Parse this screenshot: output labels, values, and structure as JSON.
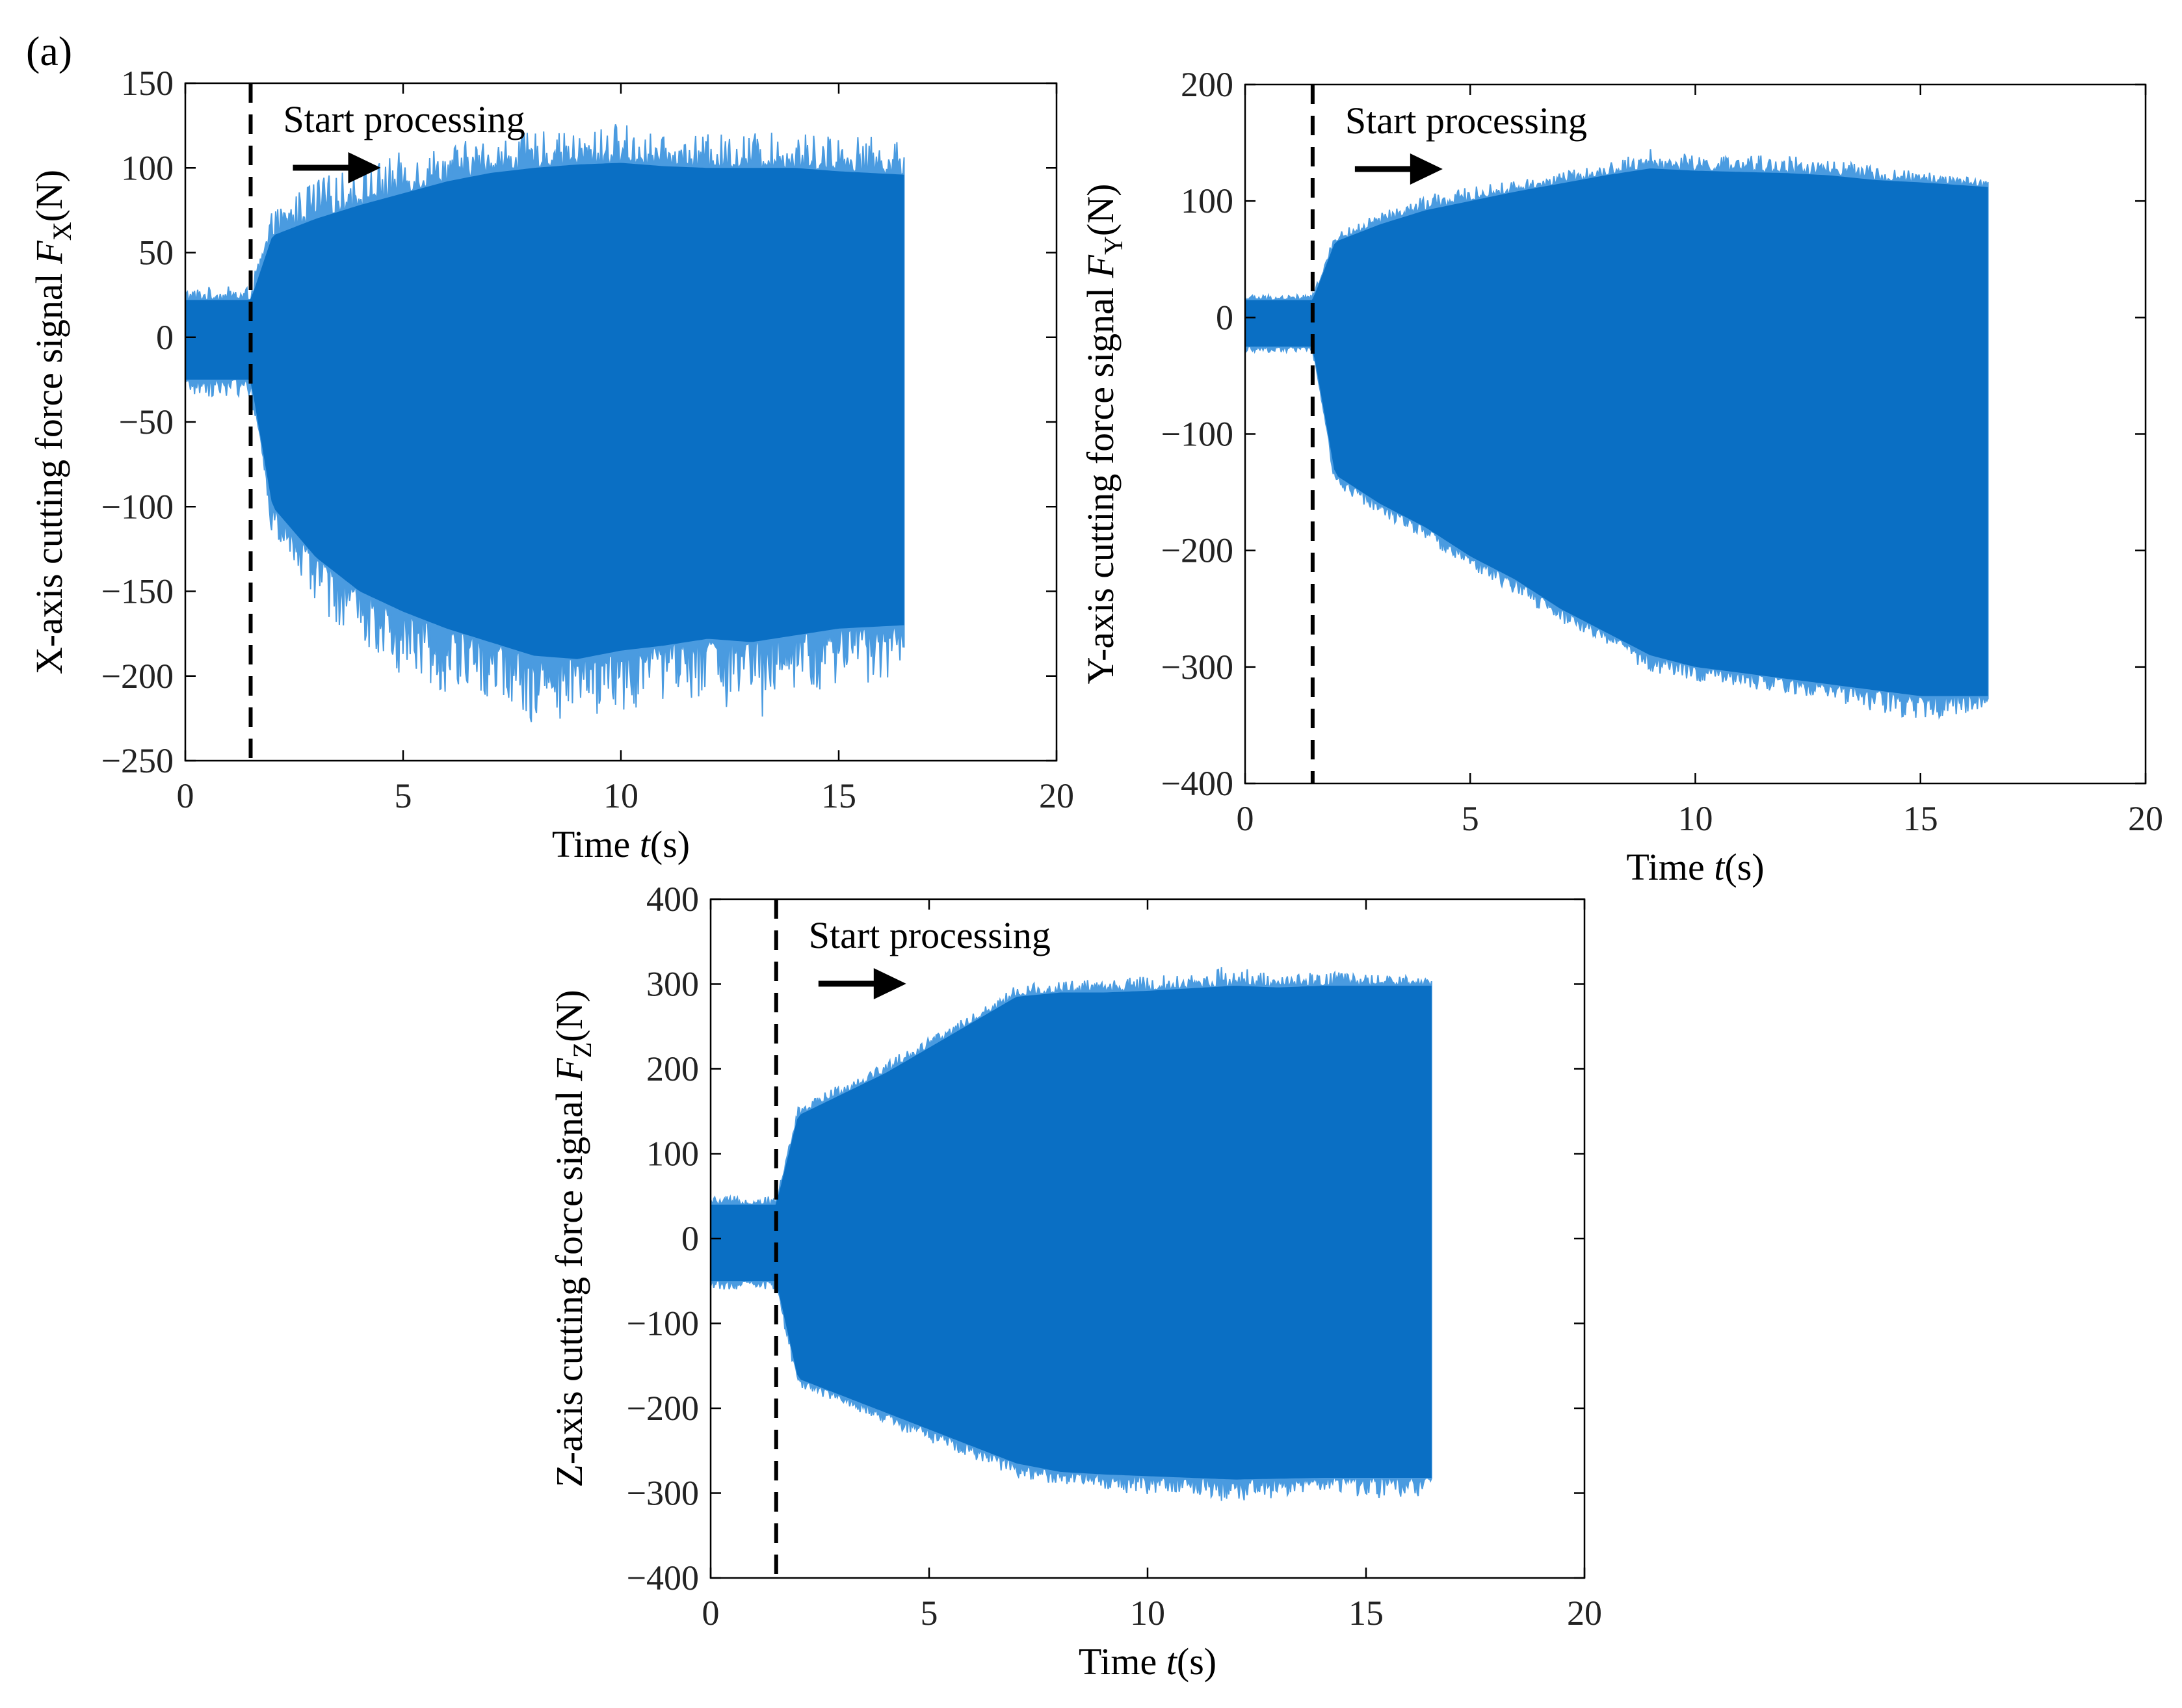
{
  "figure": {
    "panel_label": "(a)",
    "colors": {
      "signal": "#0a6fc4",
      "signal_light": "#4a9be0",
      "axis": "#000000",
      "grid_tick": "#000000"
    }
  },
  "chart_data": [
    {
      "type": "line",
      "id": "fx",
      "title": "",
      "ylabel_parts": [
        "X-axis cutting force signal ",
        "F",
        "X",
        "(N)"
      ],
      "xlabel_parts": [
        "Time ",
        "t",
        "(s)"
      ],
      "xlim": [
        0,
        20
      ],
      "ylim": [
        -250,
        150
      ],
      "xticks": [
        0,
        5,
        10,
        15,
        20
      ],
      "yticks": [
        150,
        100,
        50,
        0,
        -50,
        -100,
        -150,
        -200,
        -250
      ],
      "annotation": "Start processing",
      "start_time": 1.5,
      "end_time": 16.5,
      "envelope": {
        "t": [
          0,
          1.5,
          2.0,
          3,
          4,
          5,
          6,
          7,
          8,
          9,
          10,
          11,
          12,
          13,
          14,
          15,
          16.5
        ],
        "upper": [
          22,
          22,
          60,
          70,
          78,
          85,
          92,
          97,
          100,
          102,
          103,
          101,
          100,
          100,
          100,
          98,
          96
        ],
        "lower": [
          -25,
          -25,
          -100,
          -130,
          -150,
          -162,
          -172,
          -180,
          -188,
          -190,
          -185,
          -182,
          -178,
          -180,
          -176,
          -172,
          -170
        ],
        "upper_peak": [
          30,
          30,
          75,
          95,
          100,
          110,
          115,
          118,
          122,
          120,
          128,
          118,
          120,
          122,
          120,
          122,
          115
        ],
        "lower_peak": [
          -35,
          -35,
          -120,
          -160,
          -180,
          -200,
          -210,
          -215,
          -228,
          -225,
          -222,
          -215,
          -212,
          -235,
          -215,
          -210,
          -200
        ]
      }
    },
    {
      "type": "line",
      "id": "fy",
      "title": "",
      "ylabel_parts": [
        "Y-axis cutting force signal ",
        "F",
        "Y",
        "(N)"
      ],
      "xlabel_parts": [
        "Time ",
        "t",
        "(s)"
      ],
      "xlim": [
        0,
        20
      ],
      "ylim": [
        -400,
        200
      ],
      "xticks": [
        0,
        5,
        10,
        15,
        20
      ],
      "yticks": [
        200,
        100,
        0,
        -100,
        -200,
        -300,
        -400
      ],
      "annotation": "Start processing",
      "start_time": 1.5,
      "end_time": 16.5,
      "envelope": {
        "t": [
          0,
          1.5,
          2.0,
          3,
          4,
          5,
          6,
          7,
          8,
          9,
          10,
          11,
          12,
          13,
          14,
          15,
          16.5
        ],
        "upper": [
          15,
          15,
          65,
          80,
          92,
          100,
          108,
          115,
          122,
          128,
          126,
          125,
          124,
          122,
          118,
          116,
          112
        ],
        "lower": [
          -25,
          -25,
          -135,
          -160,
          -180,
          -205,
          -225,
          -250,
          -270,
          -290,
          -300,
          -305,
          -310,
          -315,
          -320,
          -325,
          -325
        ],
        "upper_peak": [
          20,
          20,
          72,
          90,
          105,
          112,
          118,
          125,
          132,
          145,
          140,
          138,
          142,
          135,
          130,
          125,
          120
        ],
        "lower_peak": [
          -30,
          -30,
          -145,
          -170,
          -192,
          -215,
          -238,
          -262,
          -282,
          -305,
          -312,
          -318,
          -322,
          -328,
          -340,
          -345,
          -340
        ]
      }
    },
    {
      "type": "line",
      "id": "fz",
      "title": "",
      "ylabel_parts": [
        "Z-axis cutting force signal ",
        "F",
        "Z",
        "(N)"
      ],
      "xlabel_parts": [
        "Time ",
        "t",
        "(s)"
      ],
      "xlim": [
        0,
        20
      ],
      "ylim": [
        -400,
        400
      ],
      "xticks": [
        0,
        5,
        10,
        15,
        20
      ],
      "yticks": [
        400,
        300,
        200,
        100,
        0,
        -100,
        -200,
        -300,
        -400
      ],
      "annotation": "Start processing",
      "start_time": 1.5,
      "end_time": 16.5,
      "envelope": {
        "t": [
          0,
          1.5,
          2.0,
          3,
          4,
          5,
          6,
          7,
          8,
          9,
          10,
          11,
          12,
          13,
          14,
          15,
          16.5
        ],
        "upper": [
          40,
          40,
          145,
          170,
          195,
          225,
          255,
          285,
          290,
          290,
          292,
          295,
          298,
          296,
          298,
          298,
          298
        ],
        "lower": [
          -50,
          -50,
          -165,
          -185,
          -205,
          -225,
          -245,
          -265,
          -275,
          -278,
          -280,
          -282,
          -284,
          -283,
          -282,
          -282,
          -282
        ],
        "upper_peak": [
          50,
          50,
          155,
          185,
          210,
          238,
          265,
          300,
          305,
          305,
          310,
          312,
          325,
          308,
          315,
          312,
          308
        ],
        "lower_peak": [
          -60,
          -60,
          -178,
          -195,
          -218,
          -240,
          -260,
          -282,
          -290,
          -295,
          -305,
          -300,
          -315,
          -305,
          -300,
          -306,
          -305
        ]
      }
    }
  ]
}
